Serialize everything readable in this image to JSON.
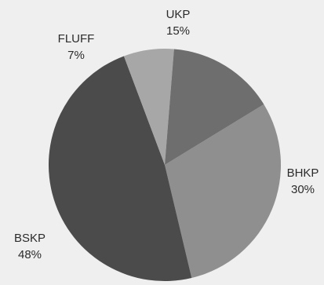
{
  "chart_data": {
    "type": "pie",
    "title": "",
    "slices": [
      {
        "label": "UKP",
        "value": 15,
        "value_label": "15%",
        "color": "#6e6e6e"
      },
      {
        "label": "BHKP",
        "value": 30,
        "value_label": "30%",
        "color": "#8f8f8f"
      },
      {
        "label": "BSKP",
        "value": 48,
        "value_label": "48%",
        "color": "#4b4b4b"
      },
      {
        "label": "FLUFF",
        "value": 7,
        "value_label": "7%",
        "color": "#a7a7a7"
      }
    ]
  }
}
